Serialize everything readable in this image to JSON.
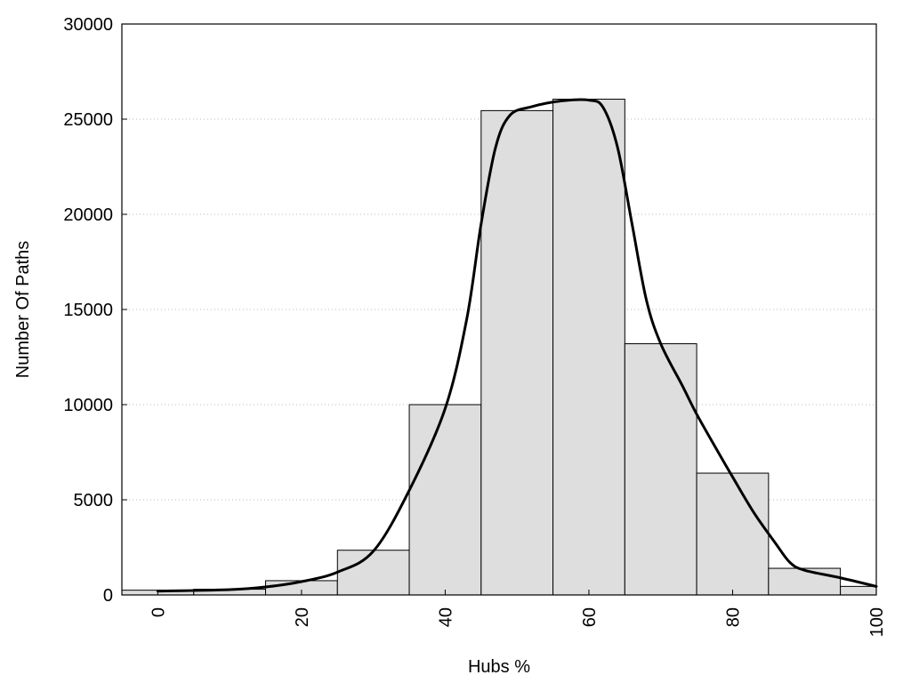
{
  "chart_data": {
    "type": "bar",
    "title": "",
    "xlabel": "Hubs %",
    "ylabel": "Number Of Paths",
    "xlim": [
      -5,
      100
    ],
    "ylim": [
      0,
      30000
    ],
    "x_ticks": [
      0,
      20,
      40,
      60,
      80,
      100
    ],
    "y_ticks": [
      0,
      5000,
      10000,
      15000,
      20000,
      25000,
      30000
    ],
    "grid": "horizontal dotted",
    "bin_width": 10,
    "bins": [
      {
        "center": 0,
        "value": 250
      },
      {
        "center": 10,
        "value": 300
      },
      {
        "center": 20,
        "value": 750
      },
      {
        "center": 30,
        "value": 2350
      },
      {
        "center": 40,
        "value": 10000
      },
      {
        "center": 50,
        "value": 25450
      },
      {
        "center": 60,
        "value": 26050
      },
      {
        "center": 70,
        "value": 13200
      },
      {
        "center": 80,
        "value": 6400
      },
      {
        "center": 90,
        "value": 1400
      },
      {
        "center": 100,
        "value": 450
      }
    ],
    "density_curve": [
      [
        0,
        200
      ],
      [
        10,
        280
      ],
      [
        15,
        420
      ],
      [
        20,
        700
      ],
      [
        25,
        1200
      ],
      [
        30,
        2300
      ],
      [
        35,
        5500
      ],
      [
        40,
        9800
      ],
      [
        43,
        14500
      ],
      [
        45,
        19500
      ],
      [
        47,
        23500
      ],
      [
        49,
        25200
      ],
      [
        52,
        25650
      ],
      [
        56,
        25950
      ],
      [
        60,
        26000
      ],
      [
        62,
        25600
      ],
      [
        64,
        23500
      ],
      [
        66,
        19500
      ],
      [
        68,
        15500
      ],
      [
        70,
        13200
      ],
      [
        73,
        11000
      ],
      [
        75,
        9500
      ],
      [
        78,
        7500
      ],
      [
        80,
        6200
      ],
      [
        83,
        4300
      ],
      [
        86,
        2700
      ],
      [
        88,
        1700
      ],
      [
        90,
        1300
      ],
      [
        95,
        900
      ],
      [
        100,
        450
      ]
    ],
    "colors": {
      "bar_fill": "#dedede",
      "bar_stroke": "#000000",
      "curve": "#000000"
    }
  }
}
